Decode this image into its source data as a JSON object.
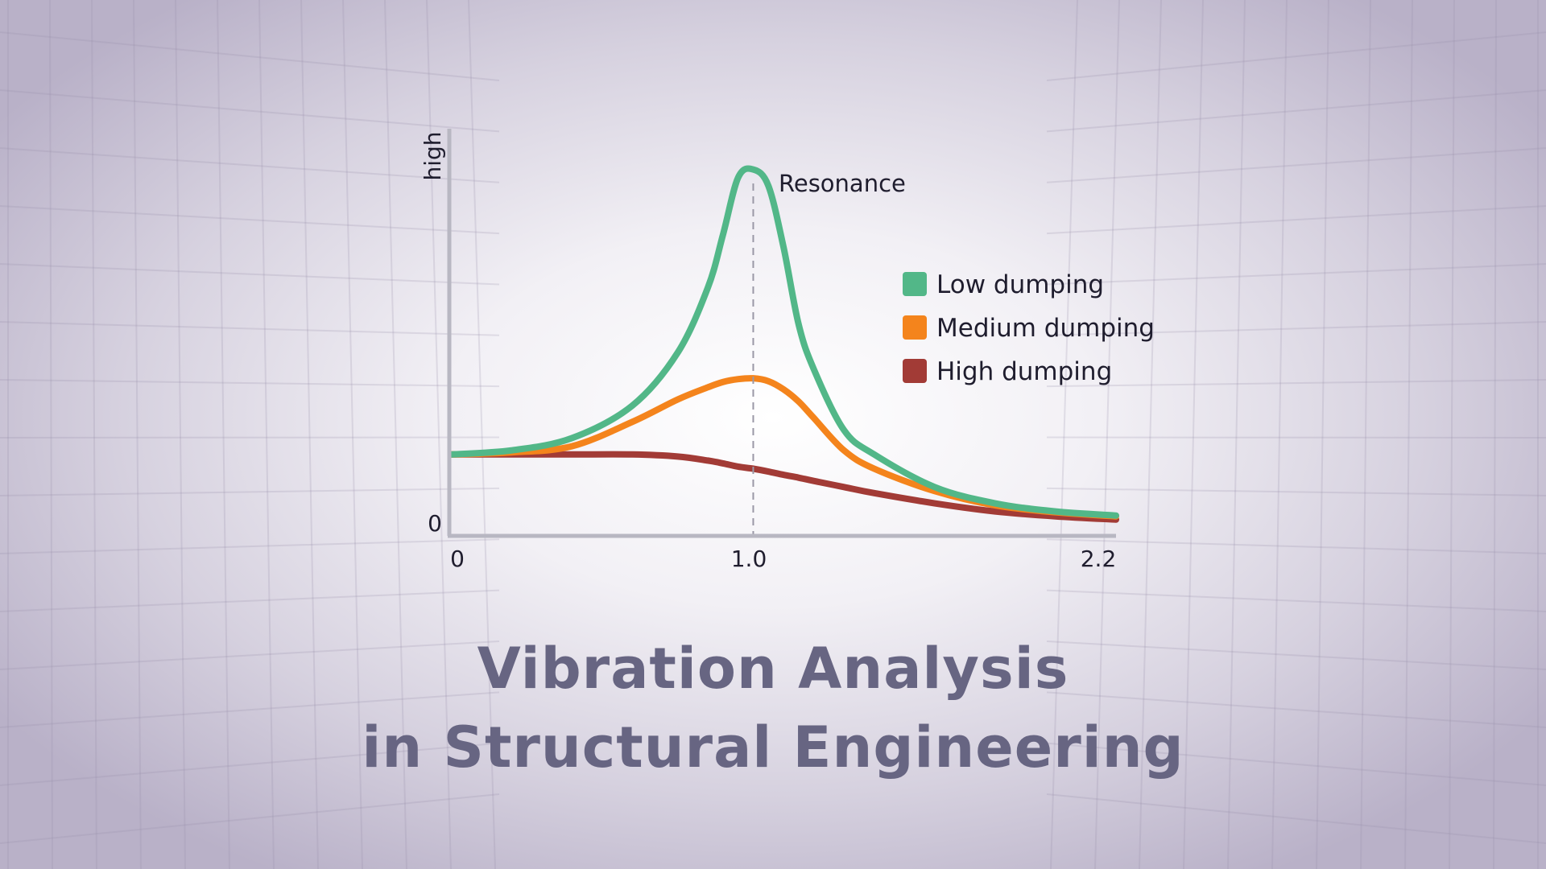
{
  "title": {
    "line1": "Vibration Analysis",
    "line2": "in Structural Engineering"
  },
  "chart_data": {
    "type": "line",
    "xlabel": "",
    "ylabel": "high",
    "x_ticks": [
      "0",
      "1.0",
      "2.2"
    ],
    "y_ticks": [
      "0"
    ],
    "xlim": [
      0,
      2.2
    ],
    "ylim": [
      0,
      1.0
    ],
    "grid": false,
    "legend_position": "right",
    "annotation": {
      "text": "Resonance",
      "x": 1.0
    },
    "x": [
      0,
      0.2,
      0.4,
      0.6,
      0.75,
      0.85,
      0.9,
      0.95,
      1.0,
      1.05,
      1.1,
      1.15,
      1.2,
      1.3,
      1.4,
      1.6,
      1.8,
      2.0,
      2.2
    ],
    "series": [
      {
        "name": "Low dumping",
        "color": "#52b788",
        "values": [
          0.2,
          0.21,
          0.24,
          0.32,
          0.45,
          0.61,
          0.74,
          0.88,
          0.9,
          0.86,
          0.71,
          0.52,
          0.41,
          0.26,
          0.2,
          0.12,
          0.08,
          0.06,
          0.05
        ]
      },
      {
        "name": "Medium dumping",
        "color": "#f4841c",
        "values": [
          0.2,
          0.205,
          0.22,
          0.28,
          0.335,
          0.365,
          0.378,
          0.385,
          0.387,
          0.38,
          0.36,
          0.33,
          0.29,
          0.21,
          0.165,
          0.11,
          0.075,
          0.058,
          0.048
        ]
      },
      {
        "name": "High dumping",
        "color": "#a23b36",
        "values": [
          0.2,
          0.2,
          0.2,
          0.2,
          0.195,
          0.185,
          0.178,
          0.17,
          0.165,
          0.158,
          0.15,
          0.143,
          0.135,
          0.12,
          0.105,
          0.08,
          0.06,
          0.048,
          0.04
        ]
      }
    ]
  }
}
